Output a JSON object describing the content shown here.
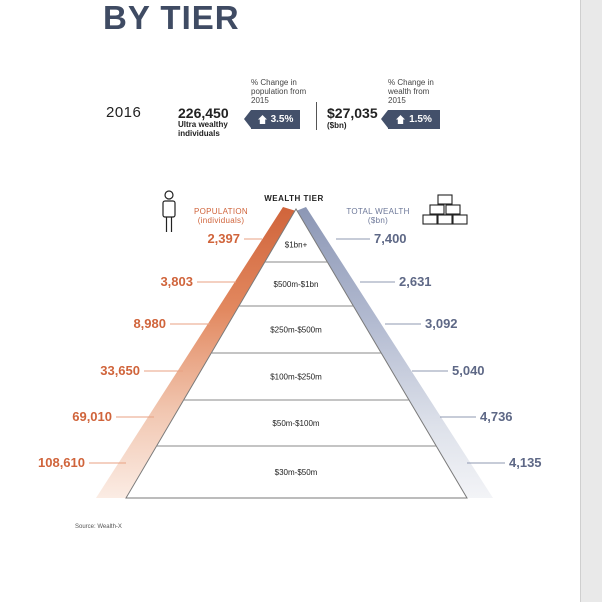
{
  "header": {
    "title": "BY TIER",
    "year": "2016",
    "population_total": "226,450",
    "population_total_label": "Ultra wealthy individuals",
    "population_change_label": "% Change in population from 2015",
    "population_change": "3.5%",
    "wealth_total": "$27,035",
    "wealth_total_unit": "($bn)",
    "wealth_change_label": "% Change in wealth from 2015",
    "wealth_change": "1.5%"
  },
  "source": "Source: Wealth-X",
  "icons": {
    "person": "person-icon",
    "gold": "gold-bars-icon",
    "change": "house-arrow-icon"
  },
  "colors": {
    "population": "#d0643b",
    "wealth": "#8c97b5",
    "dark": "#43506a"
  },
  "chart_data": {
    "type": "table",
    "title": "WEALTH TIER",
    "columns": [
      "POPULATION (individuals)",
      "WEALTH TIER",
      "TOTAL WEALTH ($bn)"
    ],
    "population_header": "POPULATION\n(individuals)",
    "wealth_header": "TOTAL WEALTH\n($bn)",
    "tiers": [
      "$1bn+",
      "$500m-$1bn",
      "$250m-$500m",
      "$100m-$250m",
      "$50m-$100m",
      "$30m-$50m"
    ],
    "population_labels": [
      "2,397",
      "3,803",
      "8,980",
      "33,650",
      "69,010",
      "108,610"
    ],
    "wealth_labels": [
      "7,400",
      "2,631",
      "3,092",
      "5,040",
      "4,736",
      "4,135"
    ],
    "population": [
      2397,
      3803,
      8980,
      33650,
      69010,
      108610
    ],
    "wealth": [
      7400,
      2631,
      3092,
      5040,
      4736,
      4135
    ]
  }
}
